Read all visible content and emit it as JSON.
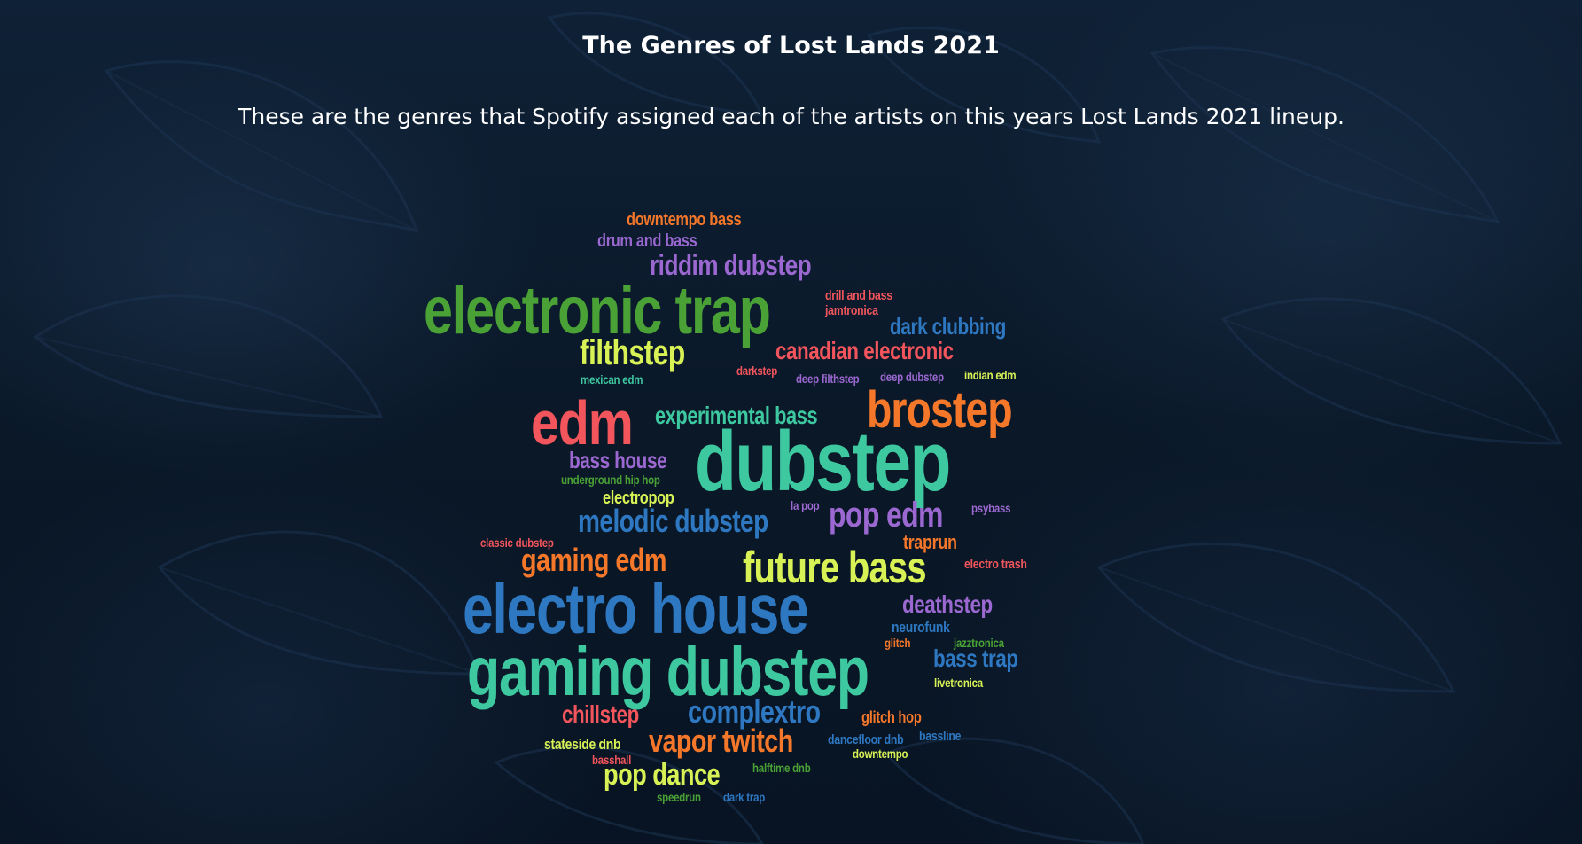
{
  "page": {
    "title": "The Genres of Lost Lands 2021",
    "subtitle": "These are the genres that Spotify assigned each of the artists on this years Lost Lands 2021 lineup.",
    "background_color": "#0b1a2b",
    "text_color": "#ffffff"
  },
  "palette": {
    "orange": "#f4772a",
    "purple": "#9a68d0",
    "green": "#4aa236",
    "red": "#f3555c",
    "blue": "#2e78c2",
    "teal": "#3ec8a0",
    "lime": "#d8f255"
  },
  "word_cloud": [
    {
      "text": "downtempo bass",
      "color": "#f4772a",
      "weight": 18
    },
    {
      "text": "drum and bass",
      "color": "#9a68d0",
      "weight": 18
    },
    {
      "text": "riddim dubstep",
      "color": "#9a68d0",
      "weight": 30
    },
    {
      "text": "electronic trap",
      "color": "#4aa236",
      "weight": 72
    },
    {
      "text": "drill and bass",
      "color": "#f3555c",
      "weight": 14
    },
    {
      "text": "jamtronica",
      "color": "#f3555c",
      "weight": 14
    },
    {
      "text": "dark clubbing",
      "color": "#2e78c2",
      "weight": 24
    },
    {
      "text": "filthstep",
      "color": "#d8f255",
      "weight": 38
    },
    {
      "text": "canadian electronic",
      "color": "#f3555c",
      "weight": 26
    },
    {
      "text": "mexican edm",
      "color": "#3ec8a0",
      "weight": 13
    },
    {
      "text": "darkstep",
      "color": "#f3555c",
      "weight": 13
    },
    {
      "text": "deep filthstep",
      "color": "#9a68d0",
      "weight": 13
    },
    {
      "text": "deep dubstep",
      "color": "#9a68d0",
      "weight": 13
    },
    {
      "text": "indian edm",
      "color": "#d8f255",
      "weight": 13
    },
    {
      "text": "edm",
      "color": "#f3555c",
      "weight": 64
    },
    {
      "text": "experimental bass",
      "color": "#3ec8a0",
      "weight": 26
    },
    {
      "text": "brostep",
      "color": "#f4772a",
      "weight": 54
    },
    {
      "text": "dubstep",
      "color": "#3ec8a0",
      "weight": 90
    },
    {
      "text": "bass house",
      "color": "#9a68d0",
      "weight": 24
    },
    {
      "text": "underground hip hop",
      "color": "#4aa236",
      "weight": 13
    },
    {
      "text": "electropop",
      "color": "#d8f255",
      "weight": 18
    },
    {
      "text": "la pop",
      "color": "#9a68d0",
      "weight": 13
    },
    {
      "text": "psybass",
      "color": "#9a68d0",
      "weight": 13
    },
    {
      "text": "melodic dubstep",
      "color": "#2e78c2",
      "weight": 34
    },
    {
      "text": "pop edm",
      "color": "#9a68d0",
      "weight": 38
    },
    {
      "text": "classic dubstep",
      "color": "#f3555c",
      "weight": 13
    },
    {
      "text": "traprun",
      "color": "#f4772a",
      "weight": 20
    },
    {
      "text": "gaming edm",
      "color": "#f4772a",
      "weight": 34
    },
    {
      "text": "future bass",
      "color": "#d8f255",
      "weight": 46
    },
    {
      "text": "electro trash",
      "color": "#f3555c",
      "weight": 14
    },
    {
      "text": "electro house",
      "color": "#2e78c2",
      "weight": 76
    },
    {
      "text": "deathstep",
      "color": "#9a68d0",
      "weight": 26
    },
    {
      "text": "neurofunk",
      "color": "#2e78c2",
      "weight": 16
    },
    {
      "text": "glitch",
      "color": "#f4772a",
      "weight": 13
    },
    {
      "text": "jazztronica",
      "color": "#4aa236",
      "weight": 13
    },
    {
      "text": "bass trap",
      "color": "#2e78c2",
      "weight": 26
    },
    {
      "text": "gaming dubstep",
      "color": "#3ec8a0",
      "weight": 74
    },
    {
      "text": "livetronica",
      "color": "#d8f255",
      "weight": 13
    },
    {
      "text": "chillstep",
      "color": "#f3555c",
      "weight": 26
    },
    {
      "text": "complextro",
      "color": "#2e78c2",
      "weight": 34
    },
    {
      "text": "glitch hop",
      "color": "#f4772a",
      "weight": 17
    },
    {
      "text": "stateside dnb",
      "color": "#d8f255",
      "weight": 16
    },
    {
      "text": "vapor twitch",
      "color": "#f4772a",
      "weight": 34
    },
    {
      "text": "dancefloor dnb",
      "color": "#2e78c2",
      "weight": 14
    },
    {
      "text": "bassline",
      "color": "#2e78c2",
      "weight": 14
    },
    {
      "text": "downtempo",
      "color": "#d8f255",
      "weight": 13
    },
    {
      "text": "basshall",
      "color": "#f3555c",
      "weight": 13
    },
    {
      "text": "halftime dnb",
      "color": "#4aa236",
      "weight": 13
    },
    {
      "text": "pop dance",
      "color": "#d8f255",
      "weight": 32
    },
    {
      "text": "speedrun",
      "color": "#4aa236",
      "weight": 13
    },
    {
      "text": "dark trap",
      "color": "#2e78c2",
      "weight": 13
    }
  ]
}
